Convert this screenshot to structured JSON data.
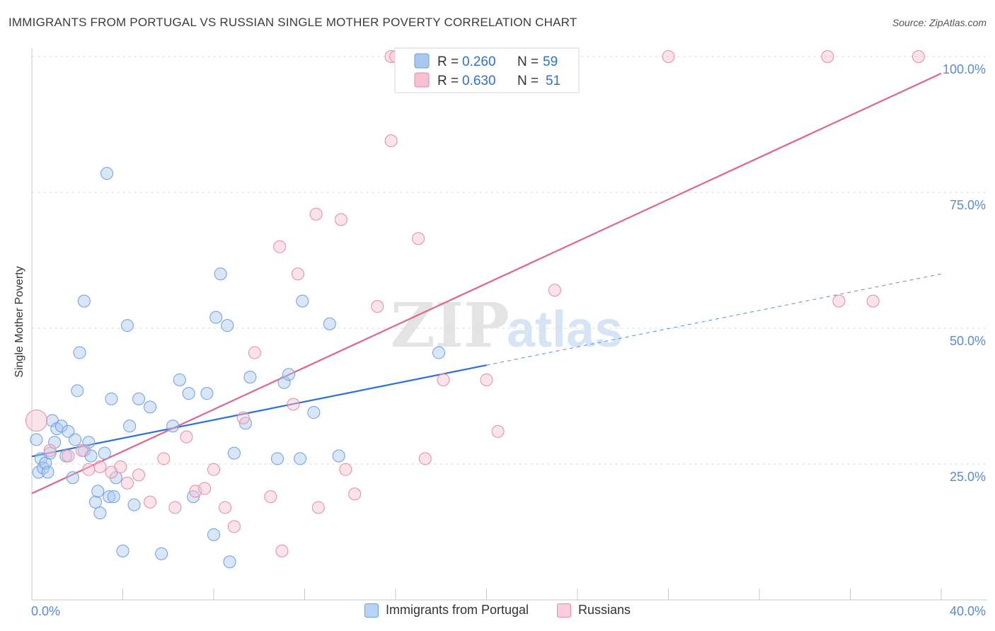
{
  "title": "IMMIGRANTS FROM PORTUGAL VS RUSSIAN SINGLE MOTHER POVERTY CORRELATION CHART",
  "source": "Source: ZipAtlas.com",
  "watermark": {
    "zip": "ZIP",
    "atlas": "atlas"
  },
  "legend": {
    "r_label": "R =",
    "n_label": "N =",
    "rows": [
      {
        "r": "0.260",
        "n": "59",
        "color": "#a9c8f0",
        "border": "#6f9fe0"
      },
      {
        "r": "0.630",
        "n": "51",
        "color": "#f7c0d0",
        "border": "#e88aa8"
      }
    ]
  },
  "bottom_legend": [
    {
      "label": "Immigrants from Portugal",
      "color": "#b9d3f4",
      "border": "#6f9fe0"
    },
    {
      "label": "Russians",
      "color": "#f9cdd9",
      "border": "#e88aa8"
    }
  ],
  "chart_data": {
    "type": "scatter",
    "title": "IMMIGRANTS FROM PORTUGAL VS RUSSIAN SINGLE MOTHER POVERTY CORRELATION CHART",
    "xlabel": "",
    "ylabel": "Single Mother Poverty",
    "xlim": [
      0,
      40
    ],
    "ylim": [
      0,
      100
    ],
    "x_tick_labels": [
      "0.0%",
      "40.0%"
    ],
    "y_ticks": [
      25,
      50,
      75,
      100
    ],
    "y_tick_labels": [
      "25.0%",
      "50.0%",
      "75.0%",
      "100.0%"
    ],
    "grid": true,
    "legend_position": "top-center",
    "series": [
      {
        "name": "Immigrants from Portugal",
        "color": "#6f9fe0",
        "fill": "#a9c8f0",
        "line_color": "#2d72d2",
        "trend": {
          "x0": 0,
          "y0": 26.4,
          "x1": 20,
          "y1": 43.2,
          "dash_to_x": 40,
          "dash_to_y": 60.0
        },
        "points": [
          [
            0.2,
            29.5
          ],
          [
            0.3,
            23.5
          ],
          [
            0.4,
            26.0
          ],
          [
            0.5,
            24.3
          ],
          [
            0.6,
            25.2
          ],
          [
            0.7,
            23.5
          ],
          [
            0.8,
            27.0
          ],
          [
            0.9,
            33.0
          ],
          [
            1.0,
            29.0
          ],
          [
            1.1,
            31.5
          ],
          [
            1.3,
            32.0
          ],
          [
            1.5,
            26.5
          ],
          [
            1.6,
            31.0
          ],
          [
            1.8,
            22.5
          ],
          [
            1.9,
            29.5
          ],
          [
            2.0,
            38.5
          ],
          [
            2.1,
            45.5
          ],
          [
            2.3,
            27.5
          ],
          [
            2.3,
            55.0
          ],
          [
            2.5,
            29.0
          ],
          [
            2.6,
            26.5
          ],
          [
            2.8,
            18.0
          ],
          [
            2.9,
            20.0
          ],
          [
            3.0,
            16.0
          ],
          [
            3.2,
            27.0
          ],
          [
            3.4,
            19.0
          ],
          [
            3.5,
            37.0
          ],
          [
            3.6,
            19.0
          ],
          [
            3.7,
            22.5
          ],
          [
            3.3,
            78.5
          ],
          [
            4.0,
            9.0
          ],
          [
            4.2,
            50.5
          ],
          [
            4.3,
            32.0
          ],
          [
            4.5,
            17.5
          ],
          [
            4.7,
            37.0
          ],
          [
            5.2,
            35.5
          ],
          [
            5.7,
            8.5
          ],
          [
            6.2,
            32.0
          ],
          [
            6.5,
            40.5
          ],
          [
            6.9,
            38.0
          ],
          [
            7.1,
            19.0
          ],
          [
            7.7,
            38.0
          ],
          [
            8.0,
            12.0
          ],
          [
            8.1,
            52.0
          ],
          [
            8.3,
            60.0
          ],
          [
            8.6,
            50.5
          ],
          [
            8.7,
            7.0
          ],
          [
            8.9,
            27.0
          ],
          [
            9.4,
            32.5
          ],
          [
            9.6,
            41.0
          ],
          [
            10.8,
            26.0
          ],
          [
            11.1,
            40.0
          ],
          [
            11.3,
            41.5
          ],
          [
            11.8,
            26.0
          ],
          [
            11.9,
            55.0
          ],
          [
            12.4,
            34.5
          ],
          [
            13.1,
            50.8
          ],
          [
            13.5,
            26.5
          ],
          [
            17.9,
            45.5
          ]
        ]
      },
      {
        "name": "Russians",
        "color": "#e88aa8",
        "fill": "#f7c0d0",
        "line_color": "#e2638e",
        "trend": {
          "x0": 0,
          "y0": 19.6,
          "x1": 40,
          "y1": 96.9
        },
        "points": [
          [
            0.2,
            33.0
          ],
          [
            0.8,
            27.5
          ],
          [
            1.6,
            26.5
          ],
          [
            2.2,
            27.5
          ],
          [
            2.5,
            24.0
          ],
          [
            3.0,
            24.5
          ],
          [
            3.5,
            23.5
          ],
          [
            3.9,
            24.5
          ],
          [
            4.2,
            21.5
          ],
          [
            4.7,
            23.0
          ],
          [
            5.2,
            18.0
          ],
          [
            5.8,
            26.0
          ],
          [
            6.3,
            17.0
          ],
          [
            6.8,
            30.0
          ],
          [
            7.2,
            20.0
          ],
          [
            7.6,
            20.5
          ],
          [
            8.0,
            24.0
          ],
          [
            8.5,
            17.0
          ],
          [
            8.9,
            13.5
          ],
          [
            9.3,
            33.5
          ],
          [
            9.8,
            45.5
          ],
          [
            10.5,
            19.0
          ],
          [
            10.9,
            65.0
          ],
          [
            11.0,
            9.0
          ],
          [
            11.5,
            36.0
          ],
          [
            11.7,
            60.0
          ],
          [
            12.5,
            71.0
          ],
          [
            12.6,
            17.0
          ],
          [
            13.6,
            70.0
          ],
          [
            13.8,
            24.0
          ],
          [
            14.2,
            19.5
          ],
          [
            15.2,
            54.0
          ],
          [
            15.8,
            100.0
          ],
          [
            15.8,
            84.5
          ],
          [
            16.0,
            100.0
          ],
          [
            17.0,
            66.5
          ],
          [
            17.3,
            26.0
          ],
          [
            18.1,
            40.5
          ],
          [
            20.0,
            40.5
          ],
          [
            20.5,
            31.0
          ],
          [
            22.5,
            100.0
          ],
          [
            23.0,
            57.0
          ],
          [
            28.0,
            100.0
          ],
          [
            35.0,
            100.0
          ],
          [
            35.5,
            55.0
          ],
          [
            37.0,
            55.0
          ],
          [
            39.0,
            100.0
          ]
        ]
      }
    ]
  }
}
